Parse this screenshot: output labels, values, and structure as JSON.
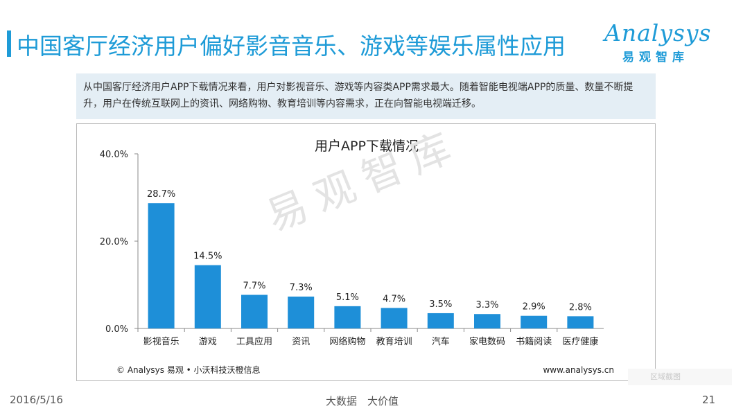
{
  "header": {
    "title": "中国客厅经济用户偏好影音音乐、游戏等娱乐属性应用",
    "logo_en": "Analysys",
    "logo_cn": "易观智库"
  },
  "summary": {
    "text": "从中国客厅经济用户APP下载情况来看，用户对影视音乐、游戏等内容类APP需求最大。随着智能电视端APP的质量、数量不断提升，用户在传统互联网上的资讯、网络购物、教育培训等内容需求，正在向智能电视端迁移。"
  },
  "chart_data": {
    "type": "bar",
    "title": "用户APP下载情况",
    "categories": [
      "影视音乐",
      "游戏",
      "工具应用",
      "资讯",
      "网络购物",
      "教育培训",
      "汽车",
      "家电数码",
      "书籍阅读",
      "医疗健康"
    ],
    "values": [
      28.7,
      14.5,
      7.7,
      7.3,
      5.1,
      4.7,
      3.5,
      3.3,
      2.9,
      2.8
    ],
    "value_labels": [
      "28.7%",
      "14.5%",
      "7.7%",
      "7.3%",
      "5.1%",
      "4.7%",
      "3.5%",
      "3.3%",
      "2.9%",
      "2.8%"
    ],
    "yticks": [
      0,
      20,
      40
    ],
    "ytick_labels": [
      "0.0%",
      "20.0%",
      "40.0%"
    ],
    "ylim": [
      0,
      40
    ],
    "xlabel": "",
    "ylabel": "",
    "bar_color": "#1e8fd8",
    "source": "© Analysys 易观 • 小沃科技沃橙信息",
    "website": "www.analysys.cn"
  },
  "watermark": "易观智库",
  "footer": {
    "date": "2016/5/16",
    "center": "大数据　大价值",
    "page": "21"
  },
  "crop_tag": "区域截图"
}
